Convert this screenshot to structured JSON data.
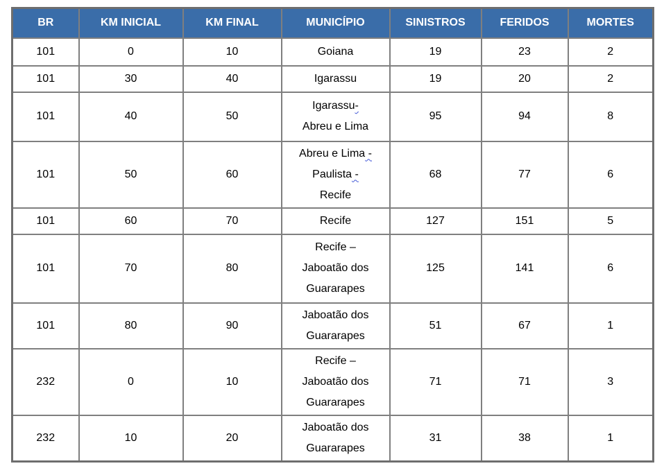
{
  "table": {
    "columns": [
      {
        "key": "br",
        "label": "BR"
      },
      {
        "key": "km_inicial",
        "label": "KM INICIAL"
      },
      {
        "key": "km_final",
        "label": "KM FINAL"
      },
      {
        "key": "municipio",
        "label": "MUNICÍPIO"
      },
      {
        "key": "sinistros",
        "label": "SINISTROS"
      },
      {
        "key": "feridos",
        "label": "FERIDOS"
      },
      {
        "key": "mortes",
        "label": "MORTES"
      }
    ],
    "rows": [
      {
        "br": "101",
        "km_inicial": "0",
        "km_final": "10",
        "municipio": [
          [
            {
              "text": "Goiana",
              "squiggle": false
            }
          ]
        ],
        "sinistros": "19",
        "feridos": "23",
        "mortes": "2"
      },
      {
        "br": "101",
        "km_inicial": "30",
        "km_final": "40",
        "municipio": [
          [
            {
              "text": "Igarassu",
              "squiggle": false
            }
          ]
        ],
        "sinistros": "19",
        "feridos": "20",
        "mortes": "2"
      },
      {
        "br": "101",
        "km_inicial": "40",
        "km_final": "50",
        "municipio": [
          [
            {
              "text": "Igarassu",
              "squiggle": false
            },
            {
              "text": "-",
              "squiggle": true
            }
          ],
          [
            {
              "text": "Abreu e Lima",
              "squiggle": false
            }
          ]
        ],
        "sinistros": "95",
        "feridos": "94",
        "mortes": "8"
      },
      {
        "br": "101",
        "km_inicial": "50",
        "km_final": "60",
        "municipio": [
          [
            {
              "text": "Abreu e Lima",
              "squiggle": false
            },
            {
              "text": " -",
              "squiggle": true
            }
          ],
          [
            {
              "text": "Paulista",
              "squiggle": false
            },
            {
              "text": " -",
              "squiggle": true
            }
          ],
          [
            {
              "text": "Recife",
              "squiggle": false
            }
          ]
        ],
        "sinistros": "68",
        "feridos": "77",
        "mortes": "6"
      },
      {
        "br": "101",
        "km_inicial": "60",
        "km_final": "70",
        "municipio": [
          [
            {
              "text": "Recife",
              "squiggle": false
            }
          ]
        ],
        "sinistros": "127",
        "feridos": "151",
        "mortes": "5"
      },
      {
        "br": "101",
        "km_inicial": "70",
        "km_final": "80",
        "municipio": [
          [
            {
              "text": "Recife –",
              "squiggle": false
            }
          ],
          [
            {
              "text": "Jaboatão dos",
              "squiggle": false
            }
          ],
          [
            {
              "text": "Guararapes",
              "squiggle": false
            }
          ]
        ],
        "sinistros": "125",
        "feridos": "141",
        "mortes": "6"
      },
      {
        "br": "101",
        "km_inicial": "80",
        "km_final": "90",
        "municipio": [
          [
            {
              "text": "Jaboatão dos",
              "squiggle": false
            }
          ],
          [
            {
              "text": "Guararapes",
              "squiggle": false
            }
          ]
        ],
        "sinistros": "51",
        "feridos": "67",
        "mortes": "1"
      },
      {
        "br": "232",
        "km_inicial": "0",
        "km_final": "10",
        "municipio": [
          [
            {
              "text": "Recife –",
              "squiggle": false
            }
          ],
          [
            {
              "text": "Jaboatão dos",
              "squiggle": false
            }
          ],
          [
            {
              "text": "Guararapes",
              "squiggle": false
            }
          ]
        ],
        "sinistros": "71",
        "feridos": "71",
        "mortes": "3"
      },
      {
        "br": "232",
        "km_inicial": "10",
        "km_final": "20",
        "municipio": [
          [
            {
              "text": "Jaboatão dos",
              "squiggle": false
            }
          ],
          [
            {
              "text": "Guararapes",
              "squiggle": false
            }
          ]
        ],
        "sinistros": "31",
        "feridos": "38",
        "mortes": "1"
      }
    ]
  },
  "colors": {
    "header_bg": "#3A6DA9",
    "header_text": "#FFFFFF",
    "border": "#7F7F7F",
    "body_text": "#000000",
    "squiggle": "#4056D6"
  }
}
